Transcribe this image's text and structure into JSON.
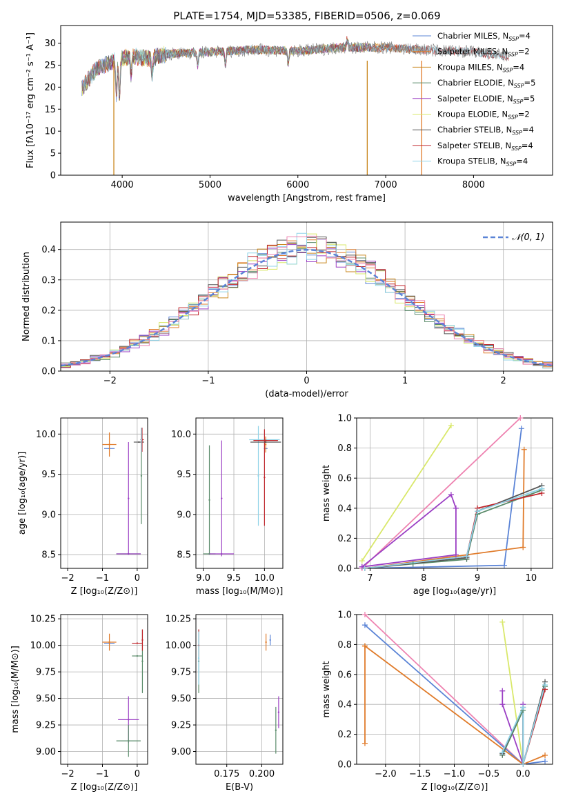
{
  "page": {
    "title": "PLATE=1754, MJD=53385, FIBERID=0506, z=0.069"
  },
  "colors": {
    "Chabrier MILES": "#5b84d6",
    "Salpeter MILES": "#e07b2a",
    "Kroupa MILES": "#c9871d",
    "Chabrier ELODIE": "#5b8c6b",
    "Salpeter ELODIE": "#9b3fc4",
    "Kroupa ELODIE": "#d9e86a",
    "Chabrier STELIB": "#555555",
    "Salpeter STELIB": "#c0272d",
    "Kroupa STELIB": "#8fd3e8",
    "pink": "#ee82b0"
  },
  "chart_data": [
    {
      "id": "spectrum",
      "type": "line",
      "title": "PLATE=1754, MJD=53385, FIBERID=0506, z=0.069",
      "xlabel": "wavelength [Angstrom, rest frame]",
      "ylabel": "Flux [fλ10⁻¹⁷ erg cm⁻² s⁻¹ A⁻¹]",
      "xlim": [
        3300,
        8900
      ],
      "ylim": [
        0,
        34
      ],
      "xticks": [
        4000,
        5000,
        6000,
        7000,
        8000
      ],
      "yticks": [
        0,
        5,
        10,
        15,
        20,
        25,
        30
      ],
      "legend": [
        "Chabrier MILES, N_SSP=4",
        "Salpeter MILES, N_SSP=2",
        "Kroupa MILES, N_SSP=4",
        "Chabrier ELODIE, N_SSP=5",
        "Salpeter ELODIE, N_SSP=5",
        "Kroupa ELODIE, N_SSP=2",
        "Chabrier STELIB, N_SSP=4",
        "Salpeter STELIB, N_SSP=4",
        "Kroupa STELIB, N_SSP=4"
      ],
      "legend_labels": [
        [
          "Chabrier MILES, N",
          "SSP",
          "=4"
        ],
        [
          "Salpeter MILES, N",
          "SSP",
          "=2"
        ],
        [
          "Kroupa MILES, N",
          "SSP",
          "=4"
        ],
        [
          "Chabrier ELODIE, N",
          "SSP",
          "=5"
        ],
        [
          "Salpeter ELODIE, N",
          "SSP",
          "=5"
        ],
        [
          "Kroupa ELODIE, N",
          "SSP",
          "=2"
        ],
        [
          "Chabrier STELIB, N",
          "SSP",
          "=4"
        ],
        [
          "Salpeter STELIB, N",
          "SSP",
          "=4"
        ],
        [
          "Kroupa STELIB, N",
          "SSP",
          "=4"
        ]
      ],
      "continuum": [
        [
          3550,
          20
        ],
        [
          3700,
          24
        ],
        [
          3900,
          26
        ],
        [
          4100,
          27
        ],
        [
          4300,
          26.5
        ],
        [
          4500,
          27.5
        ],
        [
          5000,
          28
        ],
        [
          5500,
          28.5
        ],
        [
          6000,
          28.2
        ],
        [
          6500,
          29
        ],
        [
          7000,
          29
        ],
        [
          7400,
          28.5
        ],
        [
          8000,
          28
        ],
        [
          8400,
          27
        ]
      ],
      "features": [
        [
          3934,
          -8
        ],
        [
          3969,
          -8
        ],
        [
          4101,
          -4
        ],
        [
          4340,
          -4
        ],
        [
          4861,
          -3
        ],
        [
          5175,
          -3
        ],
        [
          5890,
          -3
        ],
        [
          6563,
          2
        ]
      ],
      "spikes": [
        [
          3905,
          "Kroupa MILES"
        ],
        [
          6790,
          "Kroupa MILES"
        ],
        [
          7410,
          "Salpeter MILES"
        ]
      ]
    },
    {
      "id": "residuals",
      "type": "line",
      "xlabel": "(data-model)/error",
      "ylabel": "Normed distribution",
      "xlim": [
        -2.5,
        2.5
      ],
      "ylim": [
        0,
        0.49
      ],
      "xticks": [
        -2,
        -1,
        0,
        1,
        2
      ],
      "yticks": [
        0.0,
        0.1,
        0.2,
        0.3,
        0.4
      ],
      "legend": [
        "𝒩(0, 1)"
      ],
      "gaussian": {
        "mu": 0,
        "sigma": 1,
        "color": "#5b84d6"
      }
    },
    {
      "id": "age_vs_Z",
      "type": "scatter",
      "xlabel": "Z [log₁₀(Z/Z⊙)]",
      "ylabel": "age  [log₁₀(age/yr)]",
      "xlim": [
        -2.2,
        0.3
      ],
      "ylim": [
        8.33,
        10.2
      ],
      "xticks": [
        -2,
        -1,
        0
      ],
      "yticks": [
        8.5,
        9.0,
        9.5,
        10.0
      ],
      "points": [
        {
          "x": -0.8,
          "y": 9.82,
          "xerr": 0.15,
          "yerr": 0,
          "series": "Chabrier MILES"
        },
        {
          "x": -0.8,
          "y": 9.87,
          "xerr": 0.2,
          "yerr": 0.15,
          "series": "Salpeter MILES"
        },
        {
          "x": -0.25,
          "y": 8.51,
          "xerr": 0.35,
          "yerr": 0,
          "series": "Chabrier ELODIE"
        },
        {
          "x": -0.25,
          "y": 8.51,
          "xerr": 0.35,
          "yerr": 0,
          "series": "Salpeter ELODIE"
        },
        {
          "x": -0.25,
          "y": 9.2,
          "xerr": 0,
          "yerr": 0.7,
          "series": "Salpeter ELODIE"
        },
        {
          "x": 0.05,
          "y": 9.9,
          "xerr": 0.15,
          "yerr": 0,
          "series": "Chabrier STELIB"
        },
        {
          "x": 0.12,
          "y": 9.48,
          "xerr": 0,
          "yerr": 0.6,
          "series": "Chabrier ELODIE"
        },
        {
          "x": 0.14,
          "y": 9.93,
          "xerr": 0.05,
          "yerr": 0.15,
          "series": "Salpeter STELIB"
        },
        {
          "x": 0.12,
          "y": 9.93,
          "xerr": 0,
          "yerr": 0.15,
          "series": "Kroupa STELIB"
        }
      ]
    },
    {
      "id": "age_vs_mass",
      "type": "scatter",
      "xlabel": "mass [log₁₀(M/M⊙)]",
      "ylabel": "",
      "xlim": [
        8.88,
        10.3
      ],
      "ylim": [
        8.33,
        10.2
      ],
      "xticks": [
        9.0,
        9.5,
        10.0
      ],
      "yticks": [
        8.5,
        9.0,
        9.5,
        10.0
      ],
      "points": [
        {
          "x": 9.1,
          "y": 9.18,
          "xerr": 0,
          "yerr": 0.68,
          "series": "Chabrier ELODIE"
        },
        {
          "x": 9.1,
          "y": 8.51,
          "xerr": 0.1,
          "yerr": 0,
          "series": "Chabrier ELODIE"
        },
        {
          "x": 9.3,
          "y": 9.2,
          "xerr": 0,
          "yerr": 0.72,
          "series": "Salpeter ELODIE"
        },
        {
          "x": 9.3,
          "y": 8.51,
          "xerr": 0.2,
          "yerr": 0,
          "series": "Salpeter ELODIE"
        },
        {
          "x": 9.9,
          "y": 9.48,
          "xerr": 0,
          "yerr": 0.62,
          "series": "Kroupa STELIB"
        },
        {
          "x": 10.0,
          "y": 9.93,
          "xerr": 0.25,
          "yerr": 0,
          "series": "Kroupa STELIB"
        },
        {
          "x": 10.02,
          "y": 9.82,
          "xerr": 0.03,
          "yerr": 0,
          "series": "Chabrier MILES"
        },
        {
          "x": 10.02,
          "y": 9.87,
          "xerr": 0,
          "yerr": 0.1,
          "series": "Salpeter MILES"
        },
        {
          "x": 10.0,
          "y": 9.46,
          "xerr": 0,
          "yerr": 0.6,
          "series": "Salpeter STELIB"
        },
        {
          "x": 10.02,
          "y": 9.9,
          "xerr": 0.25,
          "yerr": 0,
          "series": "Chabrier STELIB"
        },
        {
          "x": 10.02,
          "y": 9.92,
          "xerr": 0.2,
          "yerr": 0,
          "series": "Salpeter STELIB"
        }
      ]
    },
    {
      "id": "weight_vs_age",
      "type": "line",
      "xlabel": "age  [log₁₀(age/yr)]",
      "ylabel": "mass weight",
      "xlim": [
        6.75,
        10.4
      ],
      "ylim": [
        0,
        1.0
      ],
      "xticks": [
        7,
        8,
        9,
        10
      ],
      "yticks": [
        0.0,
        0.2,
        0.4,
        0.6,
        0.8,
        1.0
      ],
      "series": [
        {
          "name": "Chabrier MILES",
          "points": [
            [
              9.82,
              0.93
            ],
            [
              9.5,
              0.02
            ],
            [
              6.9,
              0.0
            ]
          ]
        },
        {
          "name": "Salpeter MILES",
          "points": [
            [
              9.87,
              0.79
            ],
            [
              9.85,
              0.14
            ],
            [
              6.9,
              0.0
            ]
          ]
        },
        {
          "name": "Kroupa ELODIE",
          "points": [
            [
              6.85,
              0.05
            ],
            [
              8.51,
              0.95
            ]
          ]
        },
        {
          "name": "pink",
          "points": [
            [
              6.85,
              0.0
            ],
            [
              9.8,
              1.0
            ]
          ]
        },
        {
          "name": "Salpeter ELODIE",
          "points": [
            [
              6.85,
              0.01
            ],
            [
              8.51,
              0.49
            ],
            [
              8.6,
              0.4
            ],
            [
              8.6,
              0.09
            ],
            [
              6.85,
              0.01
            ]
          ]
        },
        {
          "name": "Chabrier ELODIE",
          "points": [
            [
              6.9,
              0.0
            ],
            [
              7.8,
              0.03
            ],
            [
              8.8,
              0.06
            ],
            [
              9.0,
              0.36
            ],
            [
              10.2,
              0.52
            ]
          ]
        },
        {
          "name": "Chabrier STELIB",
          "points": [
            [
              6.9,
              0.0
            ],
            [
              8.8,
              0.07
            ],
            [
              9.0,
              0.38
            ],
            [
              10.2,
              0.55
            ]
          ]
        },
        {
          "name": "Salpeter STELIB",
          "points": [
            [
              6.9,
              0.0
            ],
            [
              8.8,
              0.08
            ],
            [
              9.0,
              0.4
            ],
            [
              10.2,
              0.5
            ]
          ]
        },
        {
          "name": "Kroupa STELIB",
          "points": [
            [
              6.9,
              0.0
            ],
            [
              8.8,
              0.08
            ],
            [
              9.0,
              0.38
            ],
            [
              10.2,
              0.53
            ]
          ]
        }
      ]
    },
    {
      "id": "mass_vs_Z",
      "type": "scatter",
      "xlabel": "Z [log₁₀(Z/Z⊙)]",
      "ylabel": "mass [log₁₀(M/M⊙)]",
      "xlim": [
        -2.2,
        0.3
      ],
      "ylim": [
        8.88,
        10.29
      ],
      "xticks": [
        -2,
        -1,
        0
      ],
      "yticks": [
        9.0,
        9.25,
        9.5,
        9.75,
        10.0,
        10.25
      ],
      "points": [
        {
          "x": -0.8,
          "y": 10.02,
          "xerr": 0.15,
          "yerr": 0,
          "series": "Chabrier MILES"
        },
        {
          "x": -0.8,
          "y": 10.03,
          "xerr": 0.2,
          "yerr": 0.08,
          "series": "Salpeter MILES"
        },
        {
          "x": -0.25,
          "y": 9.3,
          "xerr": 0.3,
          "yerr": 0.22,
          "series": "Salpeter ELODIE"
        },
        {
          "x": -0.25,
          "y": 9.1,
          "xerr": 0.35,
          "yerr": 0.15,
          "series": "Chabrier ELODIE"
        },
        {
          "x": 0.0,
          "y": 10.02,
          "xerr": 0.15,
          "yerr": 0,
          "series": "Salpeter STELIB"
        },
        {
          "x": 0.0,
          "y": 9.9,
          "xerr": 0.15,
          "yerr": 0,
          "series": "Chabrier ELODIE"
        },
        {
          "x": 0.15,
          "y": 9.85,
          "xerr": 0,
          "yerr": 0.3,
          "series": "Chabrier ELODIE"
        },
        {
          "x": 0.15,
          "y": 10.05,
          "xerr": 0,
          "yerr": 0.1,
          "series": "Salpeter STELIB"
        }
      ]
    },
    {
      "id": "mass_vs_ebv",
      "type": "scatter",
      "xlabel": "E(B-V)",
      "ylabel": "",
      "xlim": [
        0.153,
        0.215
      ],
      "ylim": [
        8.88,
        10.29
      ],
      "xticks": [
        0.175,
        0.2
      ],
      "xticklabels": [
        "0.175",
        "0.200"
      ],
      "yticks": [
        9.0,
        9.25,
        9.5,
        9.75,
        10.0,
        10.25
      ],
      "points": [
        {
          "x": 0.155,
          "y": 9.85,
          "xerr": 0,
          "yerr": 0.3,
          "series": "Chabrier ELODIE"
        },
        {
          "x": 0.155,
          "y": 10.0,
          "xerr": 0,
          "yerr": 0.15,
          "series": "Salpeter STELIB"
        },
        {
          "x": 0.155,
          "y": 9.88,
          "xerr": 0,
          "yerr": 0.25,
          "series": "Kroupa STELIB"
        },
        {
          "x": 0.203,
          "y": 10.03,
          "xerr": 0,
          "yerr": 0.08,
          "series": "Salpeter MILES"
        },
        {
          "x": 0.206,
          "y": 10.05,
          "xerr": 0,
          "yerr": 0.05,
          "series": "Chabrier MILES"
        },
        {
          "x": 0.21,
          "y": 9.2,
          "xerr": 0,
          "yerr": 0.22,
          "series": "Chabrier ELODIE"
        },
        {
          "x": 0.212,
          "y": 9.37,
          "xerr": 0,
          "yerr": 0.15,
          "series": "Salpeter ELODIE"
        }
      ]
    },
    {
      "id": "weight_vs_Z",
      "type": "line",
      "xlabel": "Z [log₁₀(Z/Z⊙)]",
      "ylabel": "mass weight",
      "xlim": [
        -2.42,
        0.43
      ],
      "ylim": [
        0,
        1.0
      ],
      "xticks": [
        -2.0,
        -1.5,
        -1.0,
        -0.5,
        0.0
      ],
      "yticks": [
        0.0,
        0.2,
        0.4,
        0.6,
        0.8,
        1.0
      ],
      "series": [
        {
          "name": "pink",
          "points": [
            [
              -2.3,
              1.0
            ],
            [
              0.0,
              0.0
            ]
          ]
        },
        {
          "name": "Chabrier MILES",
          "points": [
            [
              -2.3,
              0.93
            ],
            [
              0.0,
              0.0
            ],
            [
              0.32,
              0.02
            ]
          ]
        },
        {
          "name": "Salpeter MILES",
          "points": [
            [
              -2.3,
              0.79
            ],
            [
              -2.3,
              0.14
            ]
          ]
        },
        {
          "name": "Salpeter MILES",
          "points": [
            [
              -2.3,
              0.79
            ],
            [
              0.0,
              0.0
            ],
            [
              0.32,
              0.06
            ]
          ]
        },
        {
          "name": "Kroupa ELODIE",
          "points": [
            [
              -0.3,
              0.95
            ],
            [
              0.0,
              0.0
            ]
          ]
        },
        {
          "name": "Salpeter ELODIE",
          "points": [
            [
              -0.3,
              0.49
            ],
            [
              -0.3,
              0.4
            ],
            [
              0.0,
              0.0
            ],
            [
              0.0,
              0.4
            ]
          ]
        },
        {
          "name": "Chabrier ELODIE",
          "points": [
            [
              -0.3,
              0.06
            ],
            [
              0.0,
              0.36
            ],
            [
              0.0,
              0.0
            ],
            [
              0.32,
              0.52
            ]
          ]
        },
        {
          "name": "Chabrier STELIB",
          "points": [
            [
              -0.3,
              0.07
            ],
            [
              0.0,
              0.38
            ],
            [
              0.0,
              0.0
            ],
            [
              0.32,
              0.55
            ]
          ]
        },
        {
          "name": "Salpeter STELIB",
          "points": [
            [
              0.0,
              0.0
            ],
            [
              0.32,
              0.5
            ]
          ]
        },
        {
          "name": "Kroupa STELIB",
          "points": [
            [
              -0.3,
              0.08
            ],
            [
              0.0,
              0.38
            ],
            [
              0.0,
              0.0
            ],
            [
              0.32,
              0.53
            ]
          ]
        }
      ]
    }
  ]
}
